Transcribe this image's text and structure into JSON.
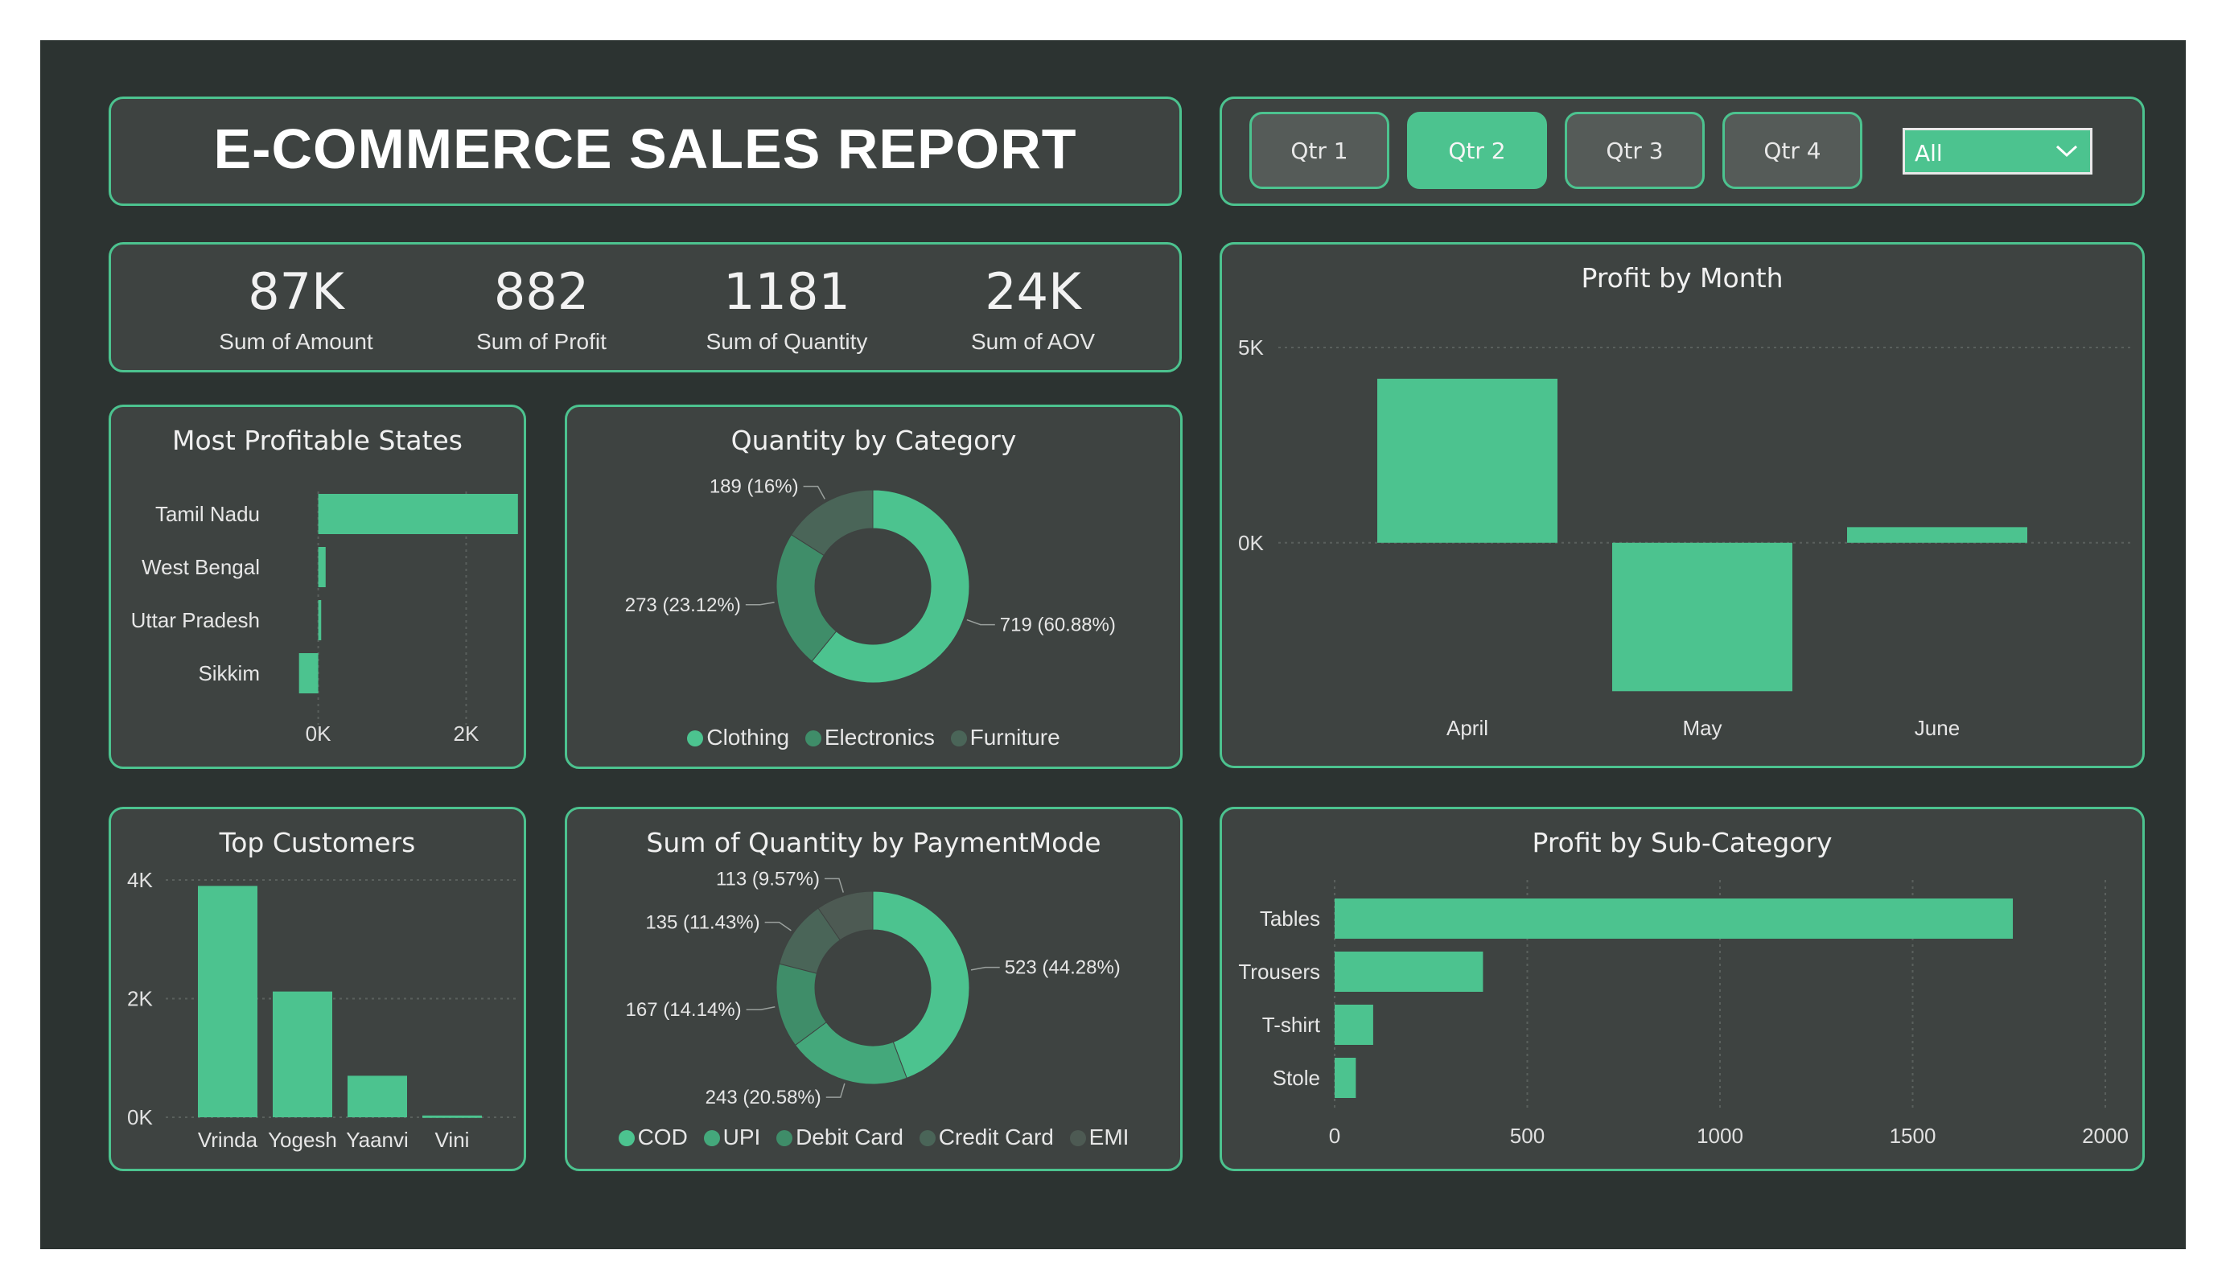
{
  "header": {
    "title": "E-COMMERCE SALES REPORT"
  },
  "filters": {
    "quarters": [
      {
        "label": "Qtr 1",
        "active": false
      },
      {
        "label": "Qtr 2",
        "active": true
      },
      {
        "label": "Qtr 3",
        "active": false
      },
      {
        "label": "Qtr 4",
        "active": false
      }
    ],
    "dropdown_value": "All",
    "dropdown_icon": "chevron-down-icon"
  },
  "kpis": [
    {
      "value": "87K",
      "label": "Sum of Amount"
    },
    {
      "value": "882",
      "label": "Sum of Profit"
    },
    {
      "value": "1181",
      "label": "Sum of Quantity"
    },
    {
      "value": "24K",
      "label": "Sum of AOV"
    }
  ],
  "colors": {
    "accent": "#4cc38f",
    "mid": "#3f8d69",
    "dark": "#4a6558",
    "darker": "#4d5a53",
    "panel": "#3e4341",
    "bg": "#2c3331"
  },
  "chart_data": [
    {
      "id": "states",
      "type": "bar",
      "orientation": "horizontal",
      "title": "Most Profitable States",
      "categories": [
        "Tamil Nadu",
        "West Bengal",
        "Uttar Pradesh",
        "Sikkim"
      ],
      "values": [
        2700,
        100,
        40,
        -260
      ],
      "xticks": [
        "0K",
        "2K"
      ],
      "xtick_values": [
        0,
        2000
      ],
      "xlim": [
        -300,
        2800
      ]
    },
    {
      "id": "category",
      "type": "pie",
      "donut": true,
      "title": "Quantity by Category",
      "labels": [
        "Clothing",
        "Electronics",
        "Furniture"
      ],
      "values": [
        719,
        273,
        189
      ],
      "data_labels": [
        "719 (60.88%)",
        "273 (23.12%)",
        "189 (16%)"
      ]
    },
    {
      "id": "month",
      "type": "bar",
      "title": "Profit by Month",
      "categories": [
        "April",
        "May",
        "June"
      ],
      "values": [
        4200,
        -3800,
        400
      ],
      "yticks": [
        "5K",
        "0K"
      ],
      "ytick_values": [
        5000,
        0
      ],
      "ylim": [
        -4000,
        5000
      ]
    },
    {
      "id": "customers",
      "type": "bar",
      "title": "Top Customers",
      "categories": [
        "Vrinda",
        "Yogesh",
        "Yaanvi",
        "Vini"
      ],
      "values": [
        3900,
        2120,
        700,
        30
      ],
      "yticks": [
        "4K",
        "2K",
        "0K"
      ],
      "ytick_values": [
        4000,
        2000,
        0
      ],
      "ylim": [
        0,
        4000
      ]
    },
    {
      "id": "payment",
      "type": "pie",
      "donut": true,
      "title": "Sum of Quantity by PaymentMode",
      "labels": [
        "COD",
        "UPI",
        "Debit Card",
        "Credit Card",
        "EMI"
      ],
      "values": [
        523,
        243,
        167,
        135,
        113
      ],
      "data_labels": [
        "523 (44.28%)",
        "243 (20.58%)",
        "167 (14.14%)",
        "135 (11.43%)",
        "113 (9.57%)"
      ]
    },
    {
      "id": "subcat",
      "type": "bar",
      "orientation": "horizontal",
      "title": "Profit by Sub-Category",
      "categories": [
        "Tables",
        "Trousers",
        "T-shirt",
        "Stole"
      ],
      "values": [
        1760,
        385,
        100,
        55
      ],
      "xticks": [
        "0",
        "500",
        "1000",
        "1500",
        "2000"
      ],
      "xtick_values": [
        0,
        500,
        1000,
        1500,
        2000
      ],
      "xlim": [
        0,
        2000
      ]
    }
  ]
}
